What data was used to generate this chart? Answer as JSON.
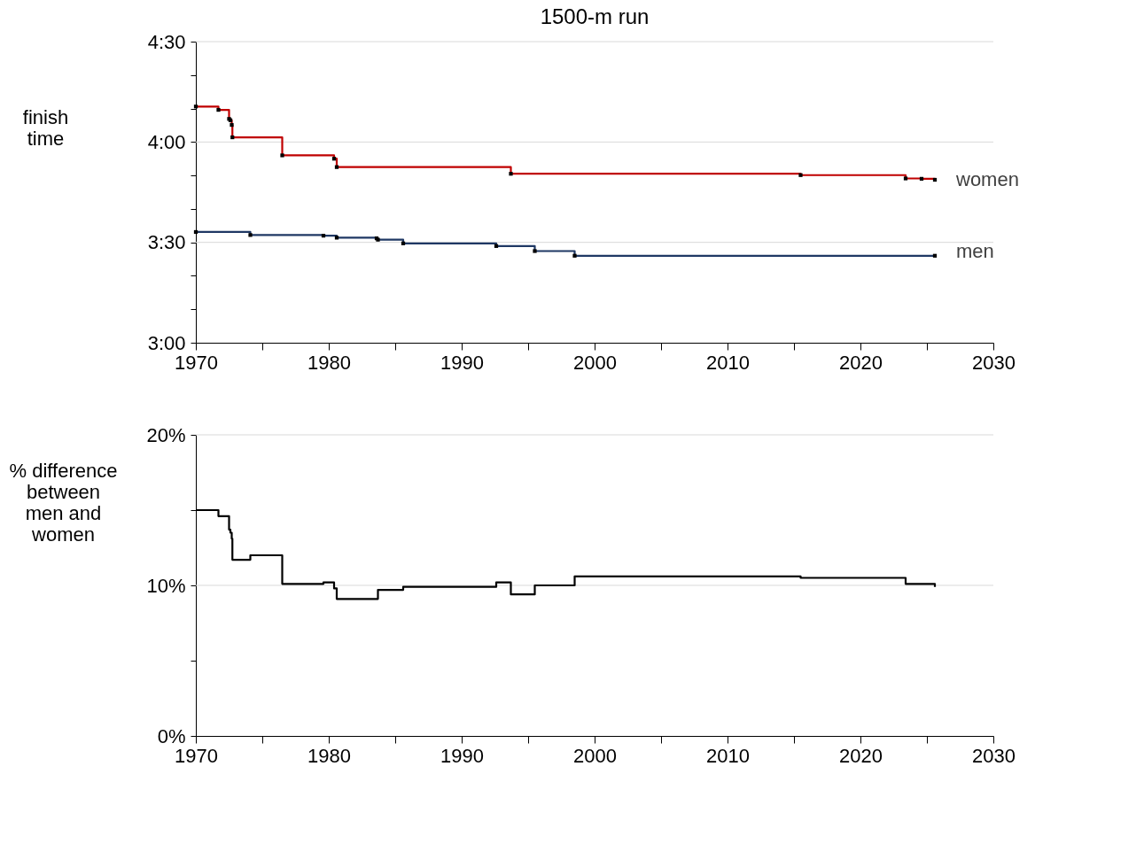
{
  "chart_data": [
    {
      "type": "step",
      "title": "1500-m run",
      "ylabel": "finish\ntime",
      "marker": "square",
      "grid": "y",
      "xlim": [
        1970,
        2030
      ],
      "xticks": [
        1970,
        {
          "value": 1975,
          "label": null
        },
        1980,
        {
          "value": 1985,
          "label": null
        },
        1990,
        {
          "value": 1995,
          "label": null
        },
        2000,
        {
          "value": 2005,
          "label": null
        },
        2010,
        {
          "value": 2015,
          "label": null
        },
        2020,
        {
          "value": 2025,
          "label": null
        },
        2030
      ],
      "ylim": [
        180,
        270
      ],
      "yticks": [
        {
          "value": 180,
          "label": "3:00"
        },
        {
          "value": 190,
          "label": null
        },
        {
          "value": 200,
          "label": null
        },
        {
          "value": 210,
          "label": "3:30"
        },
        {
          "value": 220,
          "label": null
        },
        {
          "value": 230,
          "label": null
        },
        {
          "value": 240,
          "label": "4:00"
        },
        {
          "value": 250,
          "label": null
        },
        {
          "value": 260,
          "label": null
        },
        {
          "value": 270,
          "label": "4:30"
        }
      ],
      "series": [
        {
          "name": "women",
          "color": "#c00000",
          "x": [
            1970.0,
            1971.7,
            1972.5,
            1972.6,
            1972.7,
            1972.75,
            1976.5,
            1980.4,
            1980.6,
            1993.7,
            2015.5,
            2023.4,
            2024.6,
            2025.6
          ],
          "values": [
            250.6,
            249.6,
            246.9,
            246.5,
            245.1,
            241.4,
            236.0,
            235.0,
            232.5,
            230.5,
            230.1,
            229.1,
            229.0,
            228.7
          ]
        },
        {
          "name": "men",
          "color": "#1f3864",
          "x": [
            1970.0,
            1974.1,
            1979.6,
            1980.6,
            1983.6,
            1983.7,
            1985.6,
            1992.6,
            1995.5,
            1998.5,
            2025.6
          ],
          "values": [
            213.1,
            212.2,
            212.0,
            211.4,
            211.2,
            210.8,
            209.7,
            208.9,
            207.4,
            206.0,
            206.0
          ]
        }
      ]
    },
    {
      "type": "step",
      "ylabel": "% difference\nbetween\nmen and\nwomen",
      "grid": "y",
      "xlim": [
        1970,
        2030
      ],
      "xticks": [
        1970,
        {
          "value": 1975,
          "label": null
        },
        1980,
        {
          "value": 1985,
          "label": null
        },
        1990,
        {
          "value": 1995,
          "label": null
        },
        2000,
        {
          "value": 2005,
          "label": null
        },
        2010,
        {
          "value": 2015,
          "label": null
        },
        2020,
        {
          "value": 2025,
          "label": null
        },
        2030
      ],
      "ylim": [
        0,
        20
      ],
      "yticks": [
        {
          "value": 0,
          "label": "0%"
        },
        {
          "value": 5,
          "label": null
        },
        {
          "value": 10,
          "label": "10%"
        },
        {
          "value": 15,
          "label": null
        },
        {
          "value": 20,
          "label": "20%"
        }
      ],
      "series": [
        {
          "color": "#000000",
          "x": [
            1970.0,
            1971.7,
            1972.5,
            1972.6,
            1972.7,
            1972.75,
            1974.1,
            1976.5,
            1979.6,
            1980.4,
            1980.6,
            1983.7,
            1985.6,
            1992.6,
            1993.7,
            1995.5,
            1998.5,
            2015.5,
            2023.4,
            2024.6,
            2025.6
          ],
          "values": [
            15.0,
            14.6,
            13.7,
            13.5,
            13.1,
            11.7,
            12.0,
            10.1,
            10.2,
            9.8,
            9.1,
            9.7,
            9.9,
            10.2,
            9.4,
            10.0,
            10.6,
            10.5,
            10.1,
            10.1,
            9.9
          ]
        }
      ]
    }
  ]
}
